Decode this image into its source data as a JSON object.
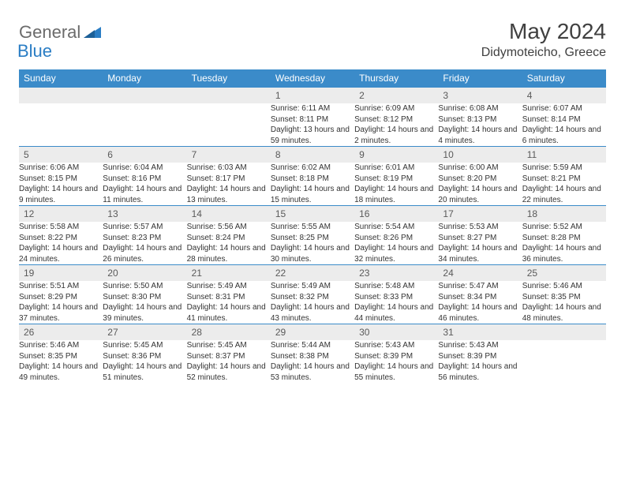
{
  "brand": {
    "part1": "General",
    "part2": "Blue"
  },
  "title": "May 2024",
  "location": "Didymoteicho, Greece",
  "colors": {
    "header_bg": "#3b8bc9",
    "header_text": "#ffffff",
    "daynum_bg": "#ececec",
    "grid_line": "#3b8bc9",
    "body_text": "#333333",
    "logo_gray": "#6b6b6b",
    "logo_blue": "#2a7dc4"
  },
  "days_of_week": [
    "Sunday",
    "Monday",
    "Tuesday",
    "Wednesday",
    "Thursday",
    "Friday",
    "Saturday"
  ],
  "weeks": [
    [
      null,
      null,
      null,
      {
        "n": "1",
        "sr": "Sunrise: 6:11 AM",
        "ss": "Sunset: 8:11 PM",
        "dl": "Daylight: 13 hours and 59 minutes."
      },
      {
        "n": "2",
        "sr": "Sunrise: 6:09 AM",
        "ss": "Sunset: 8:12 PM",
        "dl": "Daylight: 14 hours and 2 minutes."
      },
      {
        "n": "3",
        "sr": "Sunrise: 6:08 AM",
        "ss": "Sunset: 8:13 PM",
        "dl": "Daylight: 14 hours and 4 minutes."
      },
      {
        "n": "4",
        "sr": "Sunrise: 6:07 AM",
        "ss": "Sunset: 8:14 PM",
        "dl": "Daylight: 14 hours and 6 minutes."
      }
    ],
    [
      {
        "n": "5",
        "sr": "Sunrise: 6:06 AM",
        "ss": "Sunset: 8:15 PM",
        "dl": "Daylight: 14 hours and 9 minutes."
      },
      {
        "n": "6",
        "sr": "Sunrise: 6:04 AM",
        "ss": "Sunset: 8:16 PM",
        "dl": "Daylight: 14 hours and 11 minutes."
      },
      {
        "n": "7",
        "sr": "Sunrise: 6:03 AM",
        "ss": "Sunset: 8:17 PM",
        "dl": "Daylight: 14 hours and 13 minutes."
      },
      {
        "n": "8",
        "sr": "Sunrise: 6:02 AM",
        "ss": "Sunset: 8:18 PM",
        "dl": "Daylight: 14 hours and 15 minutes."
      },
      {
        "n": "9",
        "sr": "Sunrise: 6:01 AM",
        "ss": "Sunset: 8:19 PM",
        "dl": "Daylight: 14 hours and 18 minutes."
      },
      {
        "n": "10",
        "sr": "Sunrise: 6:00 AM",
        "ss": "Sunset: 8:20 PM",
        "dl": "Daylight: 14 hours and 20 minutes."
      },
      {
        "n": "11",
        "sr": "Sunrise: 5:59 AM",
        "ss": "Sunset: 8:21 PM",
        "dl": "Daylight: 14 hours and 22 minutes."
      }
    ],
    [
      {
        "n": "12",
        "sr": "Sunrise: 5:58 AM",
        "ss": "Sunset: 8:22 PM",
        "dl": "Daylight: 14 hours and 24 minutes."
      },
      {
        "n": "13",
        "sr": "Sunrise: 5:57 AM",
        "ss": "Sunset: 8:23 PM",
        "dl": "Daylight: 14 hours and 26 minutes."
      },
      {
        "n": "14",
        "sr": "Sunrise: 5:56 AM",
        "ss": "Sunset: 8:24 PM",
        "dl": "Daylight: 14 hours and 28 minutes."
      },
      {
        "n": "15",
        "sr": "Sunrise: 5:55 AM",
        "ss": "Sunset: 8:25 PM",
        "dl": "Daylight: 14 hours and 30 minutes."
      },
      {
        "n": "16",
        "sr": "Sunrise: 5:54 AM",
        "ss": "Sunset: 8:26 PM",
        "dl": "Daylight: 14 hours and 32 minutes."
      },
      {
        "n": "17",
        "sr": "Sunrise: 5:53 AM",
        "ss": "Sunset: 8:27 PM",
        "dl": "Daylight: 14 hours and 34 minutes."
      },
      {
        "n": "18",
        "sr": "Sunrise: 5:52 AM",
        "ss": "Sunset: 8:28 PM",
        "dl": "Daylight: 14 hours and 36 minutes."
      }
    ],
    [
      {
        "n": "19",
        "sr": "Sunrise: 5:51 AM",
        "ss": "Sunset: 8:29 PM",
        "dl": "Daylight: 14 hours and 37 minutes."
      },
      {
        "n": "20",
        "sr": "Sunrise: 5:50 AM",
        "ss": "Sunset: 8:30 PM",
        "dl": "Daylight: 14 hours and 39 minutes."
      },
      {
        "n": "21",
        "sr": "Sunrise: 5:49 AM",
        "ss": "Sunset: 8:31 PM",
        "dl": "Daylight: 14 hours and 41 minutes."
      },
      {
        "n": "22",
        "sr": "Sunrise: 5:49 AM",
        "ss": "Sunset: 8:32 PM",
        "dl": "Daylight: 14 hours and 43 minutes."
      },
      {
        "n": "23",
        "sr": "Sunrise: 5:48 AM",
        "ss": "Sunset: 8:33 PM",
        "dl": "Daylight: 14 hours and 44 minutes."
      },
      {
        "n": "24",
        "sr": "Sunrise: 5:47 AM",
        "ss": "Sunset: 8:34 PM",
        "dl": "Daylight: 14 hours and 46 minutes."
      },
      {
        "n": "25",
        "sr": "Sunrise: 5:46 AM",
        "ss": "Sunset: 8:35 PM",
        "dl": "Daylight: 14 hours and 48 minutes."
      }
    ],
    [
      {
        "n": "26",
        "sr": "Sunrise: 5:46 AM",
        "ss": "Sunset: 8:35 PM",
        "dl": "Daylight: 14 hours and 49 minutes."
      },
      {
        "n": "27",
        "sr": "Sunrise: 5:45 AM",
        "ss": "Sunset: 8:36 PM",
        "dl": "Daylight: 14 hours and 51 minutes."
      },
      {
        "n": "28",
        "sr": "Sunrise: 5:45 AM",
        "ss": "Sunset: 8:37 PM",
        "dl": "Daylight: 14 hours and 52 minutes."
      },
      {
        "n": "29",
        "sr": "Sunrise: 5:44 AM",
        "ss": "Sunset: 8:38 PM",
        "dl": "Daylight: 14 hours and 53 minutes."
      },
      {
        "n": "30",
        "sr": "Sunrise: 5:43 AM",
        "ss": "Sunset: 8:39 PM",
        "dl": "Daylight: 14 hours and 55 minutes."
      },
      {
        "n": "31",
        "sr": "Sunrise: 5:43 AM",
        "ss": "Sunset: 8:39 PM",
        "dl": "Daylight: 14 hours and 56 minutes."
      },
      null
    ]
  ]
}
